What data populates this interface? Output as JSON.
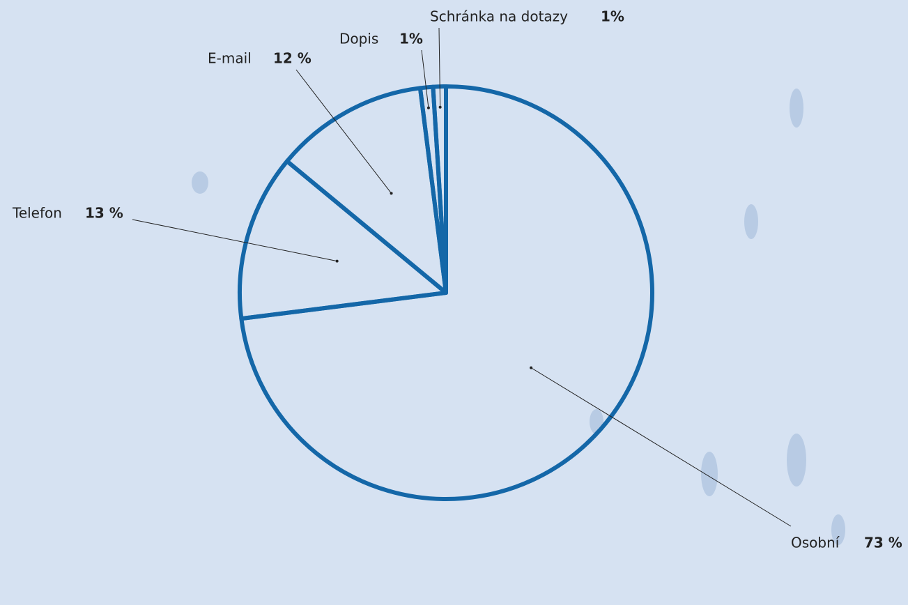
{
  "chart_data": {
    "type": "pie",
    "categories": [
      "Osobní",
      "Telefon",
      "E-mail",
      "Dopis",
      "Schránka na dotazy"
    ],
    "values": [
      73,
      13,
      12,
      1,
      1
    ],
    "value_labels": [
      "73 %",
      "13 %",
      "12 %",
      "1%",
      "1%"
    ],
    "color": "#1467a8"
  }
}
